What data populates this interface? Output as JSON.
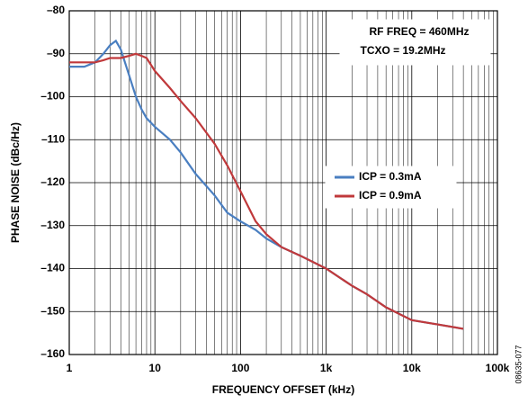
{
  "chart_data": {
    "type": "line",
    "xlabel": "FREQUENCY OFFSET (kHz)",
    "ylabel": "PHASE NOISE (dBc/Hz)",
    "annotations": [
      "RF FREQ = 460MHz",
      "TCXO = 19.2MHz",
      "08635-077"
    ],
    "xscale": "log",
    "grid": true,
    "legend": "right",
    "xlim": [
      1,
      100000
    ],
    "xticks": [
      1,
      10,
      100,
      {
        "value": 1000,
        "label": "1k"
      },
      {
        "value": 10000,
        "label": "10k"
      },
      {
        "value": 100000,
        "label": "100k"
      }
    ],
    "ylim": [
      -160,
      -80
    ],
    "yticks": [
      {
        "value": -80,
        "label": "–80"
      },
      {
        "value": -90,
        "label": "–90"
      },
      {
        "value": -100,
        "label": "–100"
      },
      {
        "value": -110,
        "label": "–110"
      },
      {
        "value": -120,
        "label": "–120"
      },
      {
        "value": -130,
        "label": "–130"
      },
      {
        "value": -140,
        "label": "–140"
      },
      {
        "value": -150,
        "label": "–150"
      },
      {
        "value": -160,
        "label": "–160"
      }
    ],
    "x": [
      1,
      1.5,
      2,
      2.5,
      3,
      3.5,
      4,
      5,
      6,
      7,
      8,
      10,
      15,
      20,
      30,
      50,
      70,
      100,
      150,
      200,
      300,
      500,
      1000,
      2000,
      3000,
      5000,
      10000,
      20000,
      40000
    ],
    "series": [
      {
        "name": "ICP = 0.3mA",
        "color": "#4a7fc1",
        "values": [
          -93,
          -93,
          -92,
          -90,
          -88,
          -87,
          -89,
          -95,
          -100,
          -103,
          -105,
          -107,
          -110,
          -113,
          -118,
          -123,
          -127,
          -129,
          -131,
          -133,
          -135,
          -137,
          -140,
          -144,
          -146,
          -149,
          -152,
          -153,
          -154
        ]
      },
      {
        "name": "ICP = 0.9mA",
        "color": "#c0393b",
        "values": [
          -92,
          -92,
          -92,
          -91.5,
          -91,
          -91,
          -91,
          -90.5,
          -90,
          -90.5,
          -91,
          -94,
          -98,
          -101,
          -105,
          -111,
          -116,
          -122,
          -129,
          -132,
          -135,
          -137,
          -140,
          -144,
          -146,
          -149,
          -152,
          -153,
          -154
        ]
      }
    ]
  }
}
